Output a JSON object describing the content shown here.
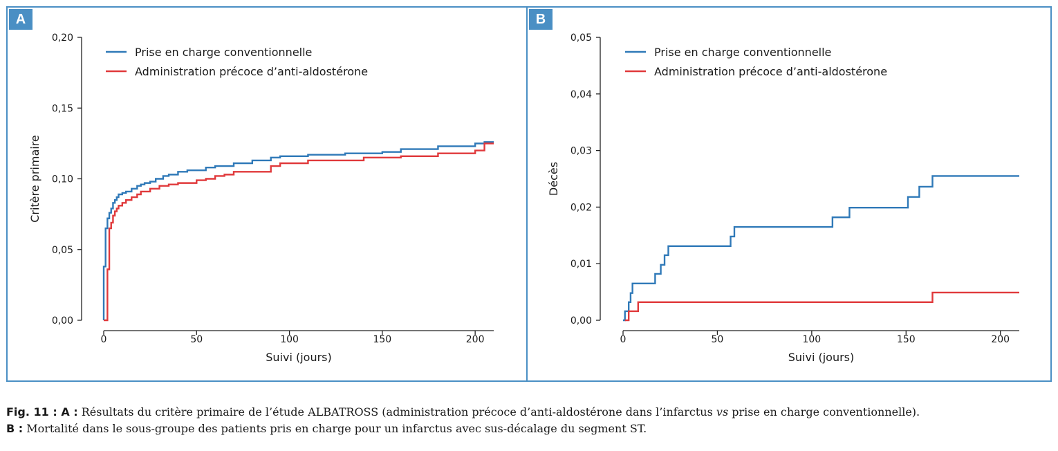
{
  "colors": {
    "frame": "#4a8fc4",
    "series_blue": "#2f79b8",
    "series_red": "#e0393b"
  },
  "panels": {
    "a_badge": "A",
    "b_badge": "B"
  },
  "caption": {
    "fig_label": "Fig. 11 :",
    "a_label": " A :",
    "a_text_1": " Résultats du critère primaire de l’étude ALBATROSS (administration précoce d’anti-aldostérone dans l’infarctus ",
    "a_text_vs": "vs",
    "a_text_2": " prise en charge conventionnelle).",
    "b_label": "B :",
    "b_text": " Mortalité dans le sous-groupe des patients pris en charge pour un infarctus avec sus-décalage du segment ST."
  },
  "chart_data": [
    {
      "type": "line",
      "panel": "A",
      "xlabel": "Suivi (jours)",
      "ylabel": "Critère primaire",
      "xlim": [
        -5,
        210
      ],
      "ylim": [
        0,
        0.2
      ],
      "x_ticks": [
        0,
        50,
        100,
        150,
        200
      ],
      "x_tick_labels": [
        "0",
        "50",
        "100",
        "150",
        "200"
      ],
      "y_ticks": [
        0,
        0.05,
        0.1,
        0.15,
        0.2
      ],
      "y_tick_labels": [
        "0,00",
        "0,05",
        "0,10",
        "0,15",
        "0,20"
      ],
      "legend_position": "top-left",
      "step": true,
      "series": [
        {
          "name": "Prise en charge conventionnelle",
          "color": "#2f79b8",
          "x": [
            0,
            0,
            1,
            2,
            3,
            4,
            5,
            6,
            7,
            8,
            10,
            12,
            15,
            18,
            20,
            22,
            25,
            28,
            32,
            35,
            40,
            45,
            55,
            60,
            70,
            80,
            90,
            95,
            110,
            130,
            150,
            160,
            180,
            200,
            205,
            210
          ],
          "y": [
            0,
            0.038,
            0.065,
            0.072,
            0.076,
            0.079,
            0.083,
            0.085,
            0.087,
            0.089,
            0.09,
            0.091,
            0.093,
            0.095,
            0.096,
            0.097,
            0.098,
            0.1,
            0.102,
            0.103,
            0.105,
            0.106,
            0.108,
            0.109,
            0.111,
            0.113,
            0.115,
            0.116,
            0.117,
            0.118,
            0.119,
            0.121,
            0.123,
            0.125,
            0.126,
            0.126
          ]
        },
        {
          "name": "Administration précoce d’anti-aldostérone",
          "color": "#e0393b",
          "x": [
            0,
            2,
            3,
            4,
            5,
            6,
            7,
            8,
            10,
            12,
            15,
            18,
            20,
            25,
            30,
            35,
            40,
            50,
            55,
            60,
            65,
            70,
            90,
            95,
            110,
            140,
            160,
            180,
            200,
            205,
            210
          ],
          "y": [
            0,
            0.036,
            0.065,
            0.069,
            0.074,
            0.077,
            0.079,
            0.081,
            0.083,
            0.085,
            0.087,
            0.089,
            0.091,
            0.093,
            0.095,
            0.096,
            0.097,
            0.099,
            0.1,
            0.102,
            0.103,
            0.105,
            0.109,
            0.111,
            0.113,
            0.115,
            0.116,
            0.118,
            0.12,
            0.125,
            0.125
          ]
        }
      ]
    },
    {
      "type": "line",
      "panel": "B",
      "xlabel": "Suivi (jours)",
      "ylabel": "Décès",
      "xlim": [
        -5,
        210
      ],
      "ylim": [
        0,
        0.05
      ],
      "x_ticks": [
        0,
        50,
        100,
        150,
        200
      ],
      "x_tick_labels": [
        "0",
        "50",
        "100",
        "150",
        "200"
      ],
      "y_ticks": [
        0,
        0.01,
        0.02,
        0.03,
        0.04,
        0.05
      ],
      "y_tick_labels": [
        "0,00",
        "0,01",
        "0,02",
        "0,03",
        "0,04",
        "0,05"
      ],
      "legend_position": "top-left",
      "step": true,
      "series": [
        {
          "name": "Prise en charge conventionnelle",
          "color": "#2f79b8",
          "x": [
            0,
            1,
            3,
            4,
            5,
            17,
            20,
            22,
            24,
            27,
            57,
            59,
            111,
            120,
            151,
            157,
            164,
            210
          ],
          "y": [
            0,
            0.0016,
            0.0032,
            0.0048,
            0.0065,
            0.0082,
            0.0098,
            0.0115,
            0.0131,
            0.0131,
            0.0148,
            0.0165,
            0.0182,
            0.0199,
            0.0218,
            0.0236,
            0.0255,
            0.0255
          ]
        },
        {
          "name": "Administration précoce d’anti-aldostérone",
          "color": "#e0393b",
          "x": [
            1,
            3,
            8,
            164,
            210
          ],
          "y": [
            0,
            0.0016,
            0.0032,
            0.0049,
            0.0049
          ]
        }
      ]
    }
  ]
}
